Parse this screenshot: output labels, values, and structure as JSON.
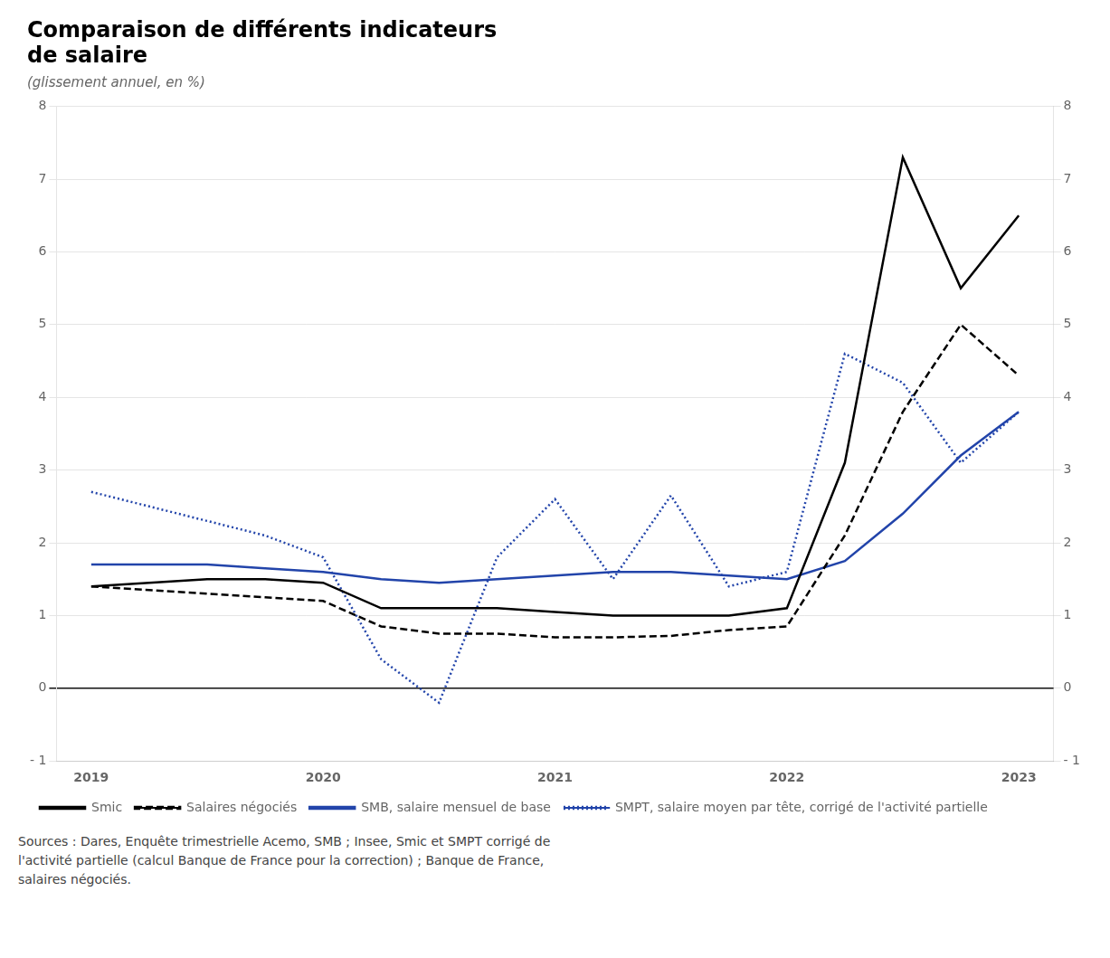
{
  "chart_data": {
    "type": "line",
    "title": "Comparaison de différents indicateurs\nde salaire",
    "subtitle": "(glissement annuel, en %)",
    "source": "Sources : Dares, Enquête trimestrielle Acemo, SMB ; Insee, Smic et SMPT corrigé de\nl'activité partielle (calcul Banque de France pour la correction) ; Banque de France,\nsalaires négociés.",
    "x": [
      2019.0,
      2019.25,
      2019.5,
      2019.75,
      2020.0,
      2020.25,
      2020.5,
      2020.75,
      2021.0,
      2021.25,
      2021.5,
      2021.75,
      2022.0,
      2022.25,
      2022.5,
      2022.75,
      2023.0
    ],
    "series": [
      {
        "name": "Smic",
        "color": "#000000",
        "line_style": "solid",
        "values": [
          1.4,
          1.45,
          1.5,
          1.5,
          1.45,
          1.1,
          1.1,
          1.1,
          1.05,
          1.0,
          1.0,
          1.0,
          1.1,
          3.1,
          7.3,
          5.5,
          6.5
        ]
      },
      {
        "name": "Salaires négociés",
        "color": "#000000",
        "line_style": "dashed",
        "values": [
          1.4,
          1.35,
          1.3,
          1.25,
          1.2,
          0.85,
          0.75,
          0.75,
          0.7,
          0.7,
          0.72,
          0.8,
          0.85,
          2.1,
          3.8,
          5.0,
          4.3
        ]
      },
      {
        "name": "SMB, salaire mensuel de base",
        "color": "#2244aa",
        "line_style": "solid",
        "values": [
          1.7,
          1.7,
          1.7,
          1.65,
          1.6,
          1.5,
          1.45,
          1.5,
          1.55,
          1.6,
          1.6,
          1.55,
          1.5,
          1.75,
          2.4,
          3.2,
          3.8
        ]
      },
      {
        "name": "SMPT, salaire moyen par tête, corrigé de l'activité partielle",
        "color": "#2244aa",
        "line_style": "dotted",
        "values": [
          2.7,
          2.5,
          2.3,
          2.1,
          1.8,
          0.4,
          -0.2,
          1.8,
          2.6,
          1.5,
          2.65,
          1.4,
          1.6,
          4.6,
          4.2,
          3.1,
          3.8
        ]
      }
    ],
    "xlim": [
      2018.85,
      2023.15
    ],
    "xticks": [
      2019,
      2020,
      2021,
      2022,
      2023
    ],
    "ylim": [
      -1,
      8
    ],
    "yticks": [
      {
        "value": -1,
        "label": "- 1"
      },
      0,
      1,
      2,
      3,
      4,
      5,
      6,
      7,
      8
    ],
    "y2lim": [
      -1,
      8
    ],
    "y2ticks": [
      {
        "value": -1,
        "label": "- 1"
      },
      0,
      1,
      2,
      3,
      4,
      5,
      6,
      7,
      8
    ],
    "grid": "y",
    "legend": "bottom"
  }
}
